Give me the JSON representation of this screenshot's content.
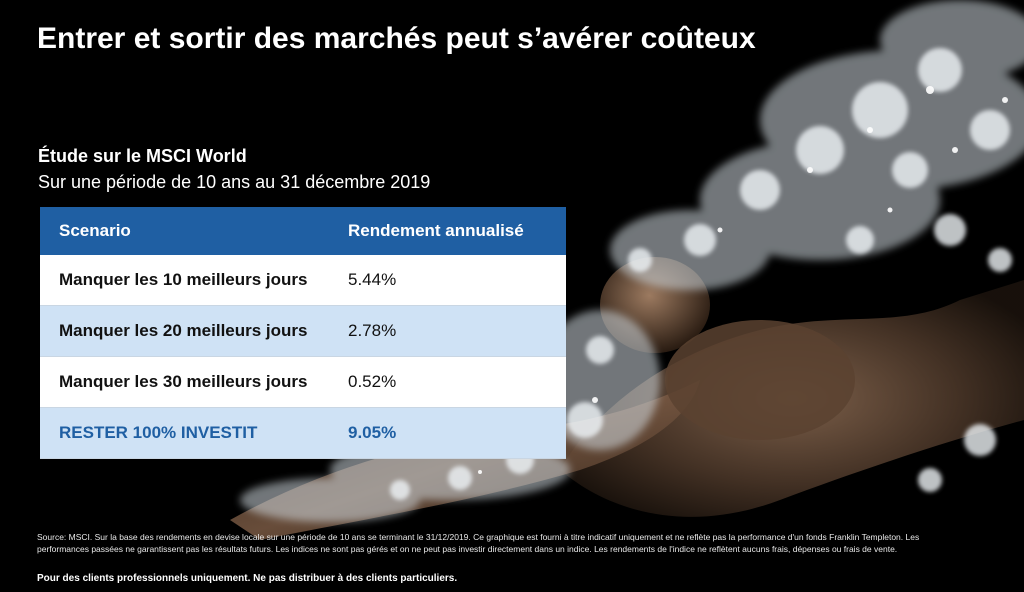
{
  "slide": {
    "title": "Entrer et sortir des marchés peut s’avérer coûteux",
    "background_image": "swimmer-splash-image"
  },
  "study": {
    "title": "Étude sur le MSCI World",
    "subtitle": "Sur une période de 10 ans au 31 décembre 2019"
  },
  "table": {
    "headers": [
      "Scenario",
      "Rendement annualisé"
    ],
    "rows": [
      {
        "scenario": "Manquer les 10 meilleurs jours",
        "return": "5.44%"
      },
      {
        "scenario": "Manquer les 20 meilleurs jours",
        "return": "2.78%"
      },
      {
        "scenario": "Manquer les 30 meilleurs jours",
        "return": "0.52%"
      },
      {
        "scenario": "RESTER 100% INVESTIT",
        "return": "9.05%"
      }
    ]
  },
  "footer": {
    "source": "Source: MSCI. Sur la base des rendements en devise locale sur une période de 10 ans se terminant le 31/12/2019. Ce graphique est fourni à titre indicatif uniquement et ne reflète pas la performance d'un fonds Franklin Templeton. Les performances passées ne garantissent pas les résultats futurs. Les indices ne sont pas gérés et on ne peut pas investir directement dans un indice. Les rendements de l'indice ne reflètent aucuns frais, dépenses ou frais de vente.",
    "disclaimer": "Pour des clients professionnels uniquement. Ne pas distribuer à des clients particuliers."
  },
  "colors": {
    "header_blue": "#1f5fa3",
    "row_light_blue": "#cfe2f5",
    "highlight_text": "#1f5fa3"
  }
}
